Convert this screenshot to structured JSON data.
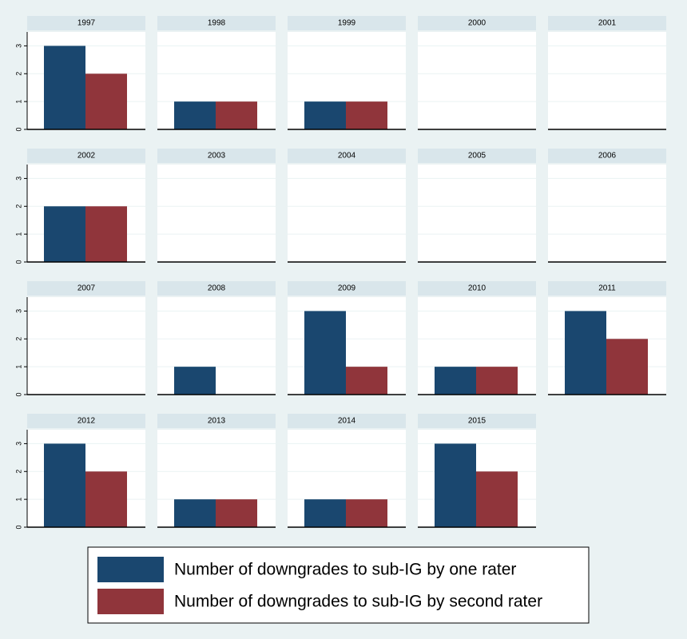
{
  "chart_data": [
    {
      "type": "bar",
      "title": "1997",
      "series": [
        {
          "values": [
            3
          ]
        },
        {
          "values": [
            2
          ]
        }
      ],
      "ylim": [
        0,
        3.5
      ],
      "yticks": [
        0,
        1,
        2,
        3
      ],
      "grid": true
    },
    {
      "type": "bar",
      "title": "1998",
      "series": [
        {
          "values": [
            1
          ]
        },
        {
          "values": [
            1
          ]
        }
      ],
      "ylim": [
        0,
        3.5
      ],
      "yticks": [
        0,
        1,
        2,
        3
      ],
      "grid": true
    },
    {
      "type": "bar",
      "title": "1999",
      "series": [
        {
          "values": [
            1
          ]
        },
        {
          "values": [
            1
          ]
        }
      ],
      "ylim": [
        0,
        3.5
      ],
      "yticks": [
        0,
        1,
        2,
        3
      ],
      "grid": true
    },
    {
      "type": "bar",
      "title": "2000",
      "series": [
        {
          "values": [
            0
          ]
        },
        {
          "values": [
            0
          ]
        }
      ],
      "ylim": [
        0,
        3.5
      ],
      "yticks": [
        0,
        1,
        2,
        3
      ],
      "grid": true
    },
    {
      "type": "bar",
      "title": "2001",
      "series": [
        {
          "values": [
            0
          ]
        },
        {
          "values": [
            0
          ]
        }
      ],
      "ylim": [
        0,
        3.5
      ],
      "yticks": [
        0,
        1,
        2,
        3
      ],
      "grid": true
    },
    {
      "type": "bar",
      "title": "2002",
      "series": [
        {
          "values": [
            2
          ]
        },
        {
          "values": [
            2
          ]
        }
      ],
      "ylim": [
        0,
        3.5
      ],
      "yticks": [
        0,
        1,
        2,
        3
      ],
      "grid": true
    },
    {
      "type": "bar",
      "title": "2003",
      "series": [
        {
          "values": [
            0
          ]
        },
        {
          "values": [
            0
          ]
        }
      ],
      "ylim": [
        0,
        3.5
      ],
      "yticks": [
        0,
        1,
        2,
        3
      ],
      "grid": true
    },
    {
      "type": "bar",
      "title": "2004",
      "series": [
        {
          "values": [
            0
          ]
        },
        {
          "values": [
            0
          ]
        }
      ],
      "ylim": [
        0,
        3.5
      ],
      "yticks": [
        0,
        1,
        2,
        3
      ],
      "grid": true
    },
    {
      "type": "bar",
      "title": "2005",
      "series": [
        {
          "values": [
            0
          ]
        },
        {
          "values": [
            0
          ]
        }
      ],
      "ylim": [
        0,
        3.5
      ],
      "yticks": [
        0,
        1,
        2,
        3
      ],
      "grid": true
    },
    {
      "type": "bar",
      "title": "2006",
      "series": [
        {
          "values": [
            0
          ]
        },
        {
          "values": [
            0
          ]
        }
      ],
      "ylim": [
        0,
        3.5
      ],
      "yticks": [
        0,
        1,
        2,
        3
      ],
      "grid": true
    },
    {
      "type": "bar",
      "title": "2007",
      "series": [
        {
          "values": [
            0
          ]
        },
        {
          "values": [
            0
          ]
        }
      ],
      "ylim": [
        0,
        3.5
      ],
      "yticks": [
        0,
        1,
        2,
        3
      ],
      "grid": true
    },
    {
      "type": "bar",
      "title": "2008",
      "series": [
        {
          "values": [
            1
          ]
        },
        {
          "values": [
            0
          ]
        }
      ],
      "ylim": [
        0,
        3.5
      ],
      "yticks": [
        0,
        1,
        2,
        3
      ],
      "grid": true
    },
    {
      "type": "bar",
      "title": "2009",
      "series": [
        {
          "values": [
            3
          ]
        },
        {
          "values": [
            1
          ]
        }
      ],
      "ylim": [
        0,
        3.5
      ],
      "yticks": [
        0,
        1,
        2,
        3
      ],
      "grid": true
    },
    {
      "type": "bar",
      "title": "2010",
      "series": [
        {
          "values": [
            1
          ]
        },
        {
          "values": [
            1
          ]
        }
      ],
      "ylim": [
        0,
        3.5
      ],
      "yticks": [
        0,
        1,
        2,
        3
      ],
      "grid": true
    },
    {
      "type": "bar",
      "title": "2011",
      "series": [
        {
          "values": [
            3
          ]
        },
        {
          "values": [
            2
          ]
        }
      ],
      "ylim": [
        0,
        3.5
      ],
      "yticks": [
        0,
        1,
        2,
        3
      ],
      "grid": true
    },
    {
      "type": "bar",
      "title": "2012",
      "series": [
        {
          "values": [
            3
          ]
        },
        {
          "values": [
            2
          ]
        }
      ],
      "ylim": [
        0,
        3.5
      ],
      "yticks": [
        0,
        1,
        2,
        3
      ],
      "grid": true
    },
    {
      "type": "bar",
      "title": "2013",
      "series": [
        {
          "values": [
            1
          ]
        },
        {
          "values": [
            1
          ]
        }
      ],
      "ylim": [
        0,
        3.5
      ],
      "yticks": [
        0,
        1,
        2,
        3
      ],
      "grid": true
    },
    {
      "type": "bar",
      "title": "2014",
      "series": [
        {
          "values": [
            1
          ]
        },
        {
          "values": [
            1
          ]
        }
      ],
      "ylim": [
        0,
        3.5
      ],
      "yticks": [
        0,
        1,
        2,
        3
      ],
      "grid": true
    },
    {
      "type": "bar",
      "title": "2015",
      "series": [
        {
          "values": [
            3
          ]
        },
        {
          "values": [
            2
          ]
        }
      ],
      "ylim": [
        0,
        3.5
      ],
      "yticks": [
        0,
        1,
        2,
        3
      ],
      "grid": true
    }
  ],
  "legend": [
    {
      "name": "Number of downgrades to sub-IG by one rater",
      "color": "#1a476f"
    },
    {
      "name": "Number of downgrades to sub-IG by second rater",
      "color": "#90353b"
    }
  ]
}
